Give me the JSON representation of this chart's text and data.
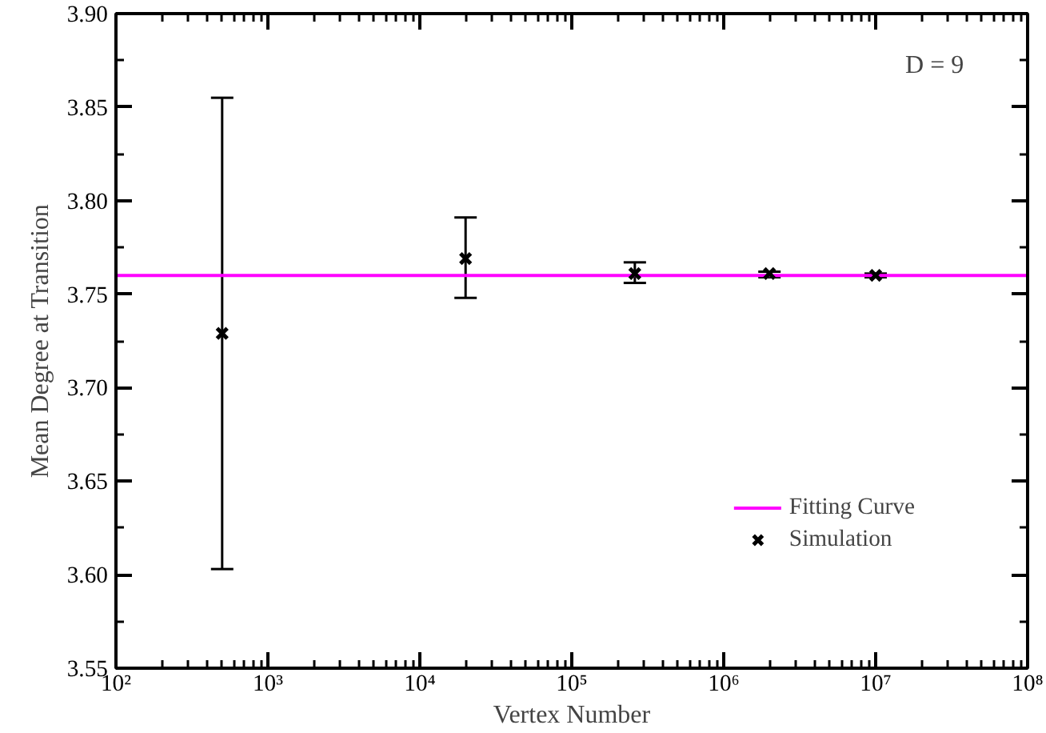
{
  "chart_data": {
    "type": "scatter",
    "xlabel": "Vertex Number",
    "ylabel": "Mean Degree at Transition",
    "annotations": [
      "D = 9"
    ],
    "log": "x",
    "xlim": [
      100,
      100000000
    ],
    "ylim": [
      3.55,
      3.9
    ],
    "xticks": [
      {
        "value": 100,
        "label": "10²"
      },
      {
        "value": 1000,
        "label": "10³"
      },
      {
        "value": 10000,
        "label": "10⁴"
      },
      {
        "value": 100000,
        "label": "10⁵"
      },
      {
        "value": 1000000,
        "label": "10⁶"
      },
      {
        "value": 10000000,
        "label": "10⁷"
      },
      {
        "value": 100000000,
        "label": "10⁸"
      }
    ],
    "yticks": [
      {
        "value": 3.55,
        "label": "3.55"
      },
      {
        "value": 3.6,
        "label": "3.60"
      },
      {
        "value": 3.65,
        "label": "3.65"
      },
      {
        "value": 3.7,
        "label": "3.70"
      },
      {
        "value": 3.75,
        "label": "3.75"
      },
      {
        "value": 3.8,
        "label": "3.80"
      },
      {
        "value": 3.85,
        "label": "3.85"
      },
      {
        "value": 3.9,
        "label": "3.90"
      }
    ],
    "grid": false,
    "legend": "bottom right",
    "series": [
      {
        "name": "Fitting Curve",
        "type": "line",
        "color": "#ff00ff",
        "x": [
          100,
          100000000
        ],
        "values": [
          3.76,
          3.76
        ],
        "line_style": "solid",
        "marker": "none"
      },
      {
        "name": "Simulation",
        "color": "#000000",
        "marker": "cross",
        "x": [
          500,
          20000,
          260000,
          2000000,
          10000000
        ],
        "values": [
          3.729,
          3.769,
          3.761,
          3.761,
          3.76
        ],
        "errors": [
          [
            3.603,
            3.855
          ],
          [
            3.748,
            3.791
          ],
          [
            3.756,
            3.767
          ],
          [
            3.759,
            3.762
          ],
          [
            3.759,
            3.761
          ]
        ]
      }
    ]
  }
}
